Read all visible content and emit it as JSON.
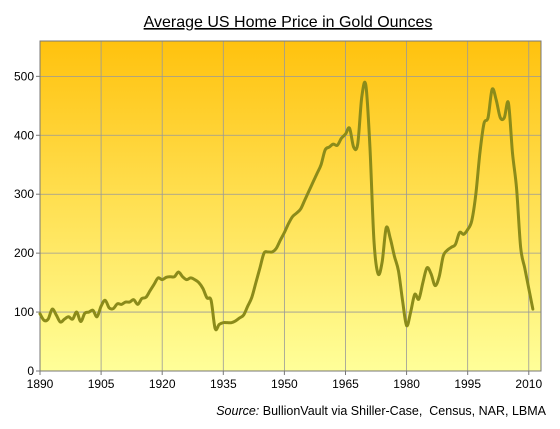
{
  "chart_data": {
    "type": "line",
    "title": "Average US Home Price in Gold Ounces",
    "xlabel": "",
    "ylabel": "",
    "xlim": [
      1890,
      2013
    ],
    "ylim": [
      0,
      560
    ],
    "x_ticks": [
      "1890",
      "1905",
      "1920",
      "1935",
      "1950",
      "1965",
      "1980",
      "1995",
      "2010"
    ],
    "y_ticks": [
      "0",
      "100",
      "200",
      "300",
      "400",
      "500"
    ],
    "grid": true,
    "background_gradient": [
      "#ffc20e",
      "#ffff99"
    ],
    "series": [
      {
        "color": "#8b8b1a",
        "x": [
          1890,
          1891,
          1892,
          1893,
          1894,
          1895,
          1896,
          1897,
          1898,
          1899,
          1900,
          1901,
          1902,
          1903,
          1904,
          1905,
          1906,
          1907,
          1908,
          1909,
          1910,
          1911,
          1912,
          1913,
          1914,
          1915,
          1916,
          1917,
          1918,
          1919,
          1920,
          1921,
          1922,
          1923,
          1924,
          1925,
          1926,
          1927,
          1928,
          1929,
          1930,
          1931,
          1932,
          1933,
          1934,
          1935,
          1936,
          1937,
          1938,
          1939,
          1940,
          1941,
          1942,
          1943,
          1944,
          1945,
          1946,
          1947,
          1948,
          1949,
          1950,
          1951,
          1952,
          1953,
          1954,
          1955,
          1956,
          1957,
          1958,
          1959,
          1960,
          1961,
          1962,
          1963,
          1964,
          1965,
          1966,
          1967,
          1968,
          1969,
          1970,
          1971,
          1972,
          1973,
          1974,
          1975,
          1976,
          1977,
          1978,
          1979,
          1980,
          1981,
          1982,
          1983,
          1984,
          1985,
          1986,
          1987,
          1988,
          1989,
          1990,
          1991,
          1992,
          1993,
          1994,
          1995,
          1996,
          1997,
          1998,
          1999,
          2000,
          2001,
          2002,
          2003,
          2004,
          2005,
          2006,
          2007,
          2008,
          2009,
          2010,
          2011
        ],
        "y": [
          97,
          86,
          88,
          105,
          95,
          83,
          88,
          92,
          88,
          100,
          84,
          98,
          100,
          103,
          92,
          110,
          120,
          107,
          106,
          114,
          113,
          117,
          117,
          121,
          113,
          123,
          125,
          136,
          147,
          158,
          155,
          159,
          160,
          160,
          168,
          160,
          155,
          158,
          155,
          150,
          140,
          124,
          120,
          72,
          79,
          82,
          82,
          82,
          85,
          90,
          95,
          110,
          125,
          150,
          175,
          200,
          202,
          202,
          208,
          222,
          235,
          250,
          262,
          268,
          275,
          290,
          305,
          320,
          335,
          350,
          375,
          380,
          385,
          383,
          395,
          402,
          412,
          380,
          385,
          465,
          485,
          380,
          220,
          165,
          185,
          243,
          225,
          195,
          170,
          120,
          77,
          100,
          130,
          122,
          150,
          175,
          165,
          145,
          160,
          195,
          205,
          210,
          215,
          235,
          232,
          240,
          255,
          300,
          370,
          420,
          430,
          478,
          460,
          430,
          430,
          455,
          370,
          310,
          210,
          175,
          140,
          105
        ]
      }
    ],
    "source_label": "Source:",
    "source_text": " BullionVault via Shiller-Case,  Census, NAR, LBMA"
  }
}
